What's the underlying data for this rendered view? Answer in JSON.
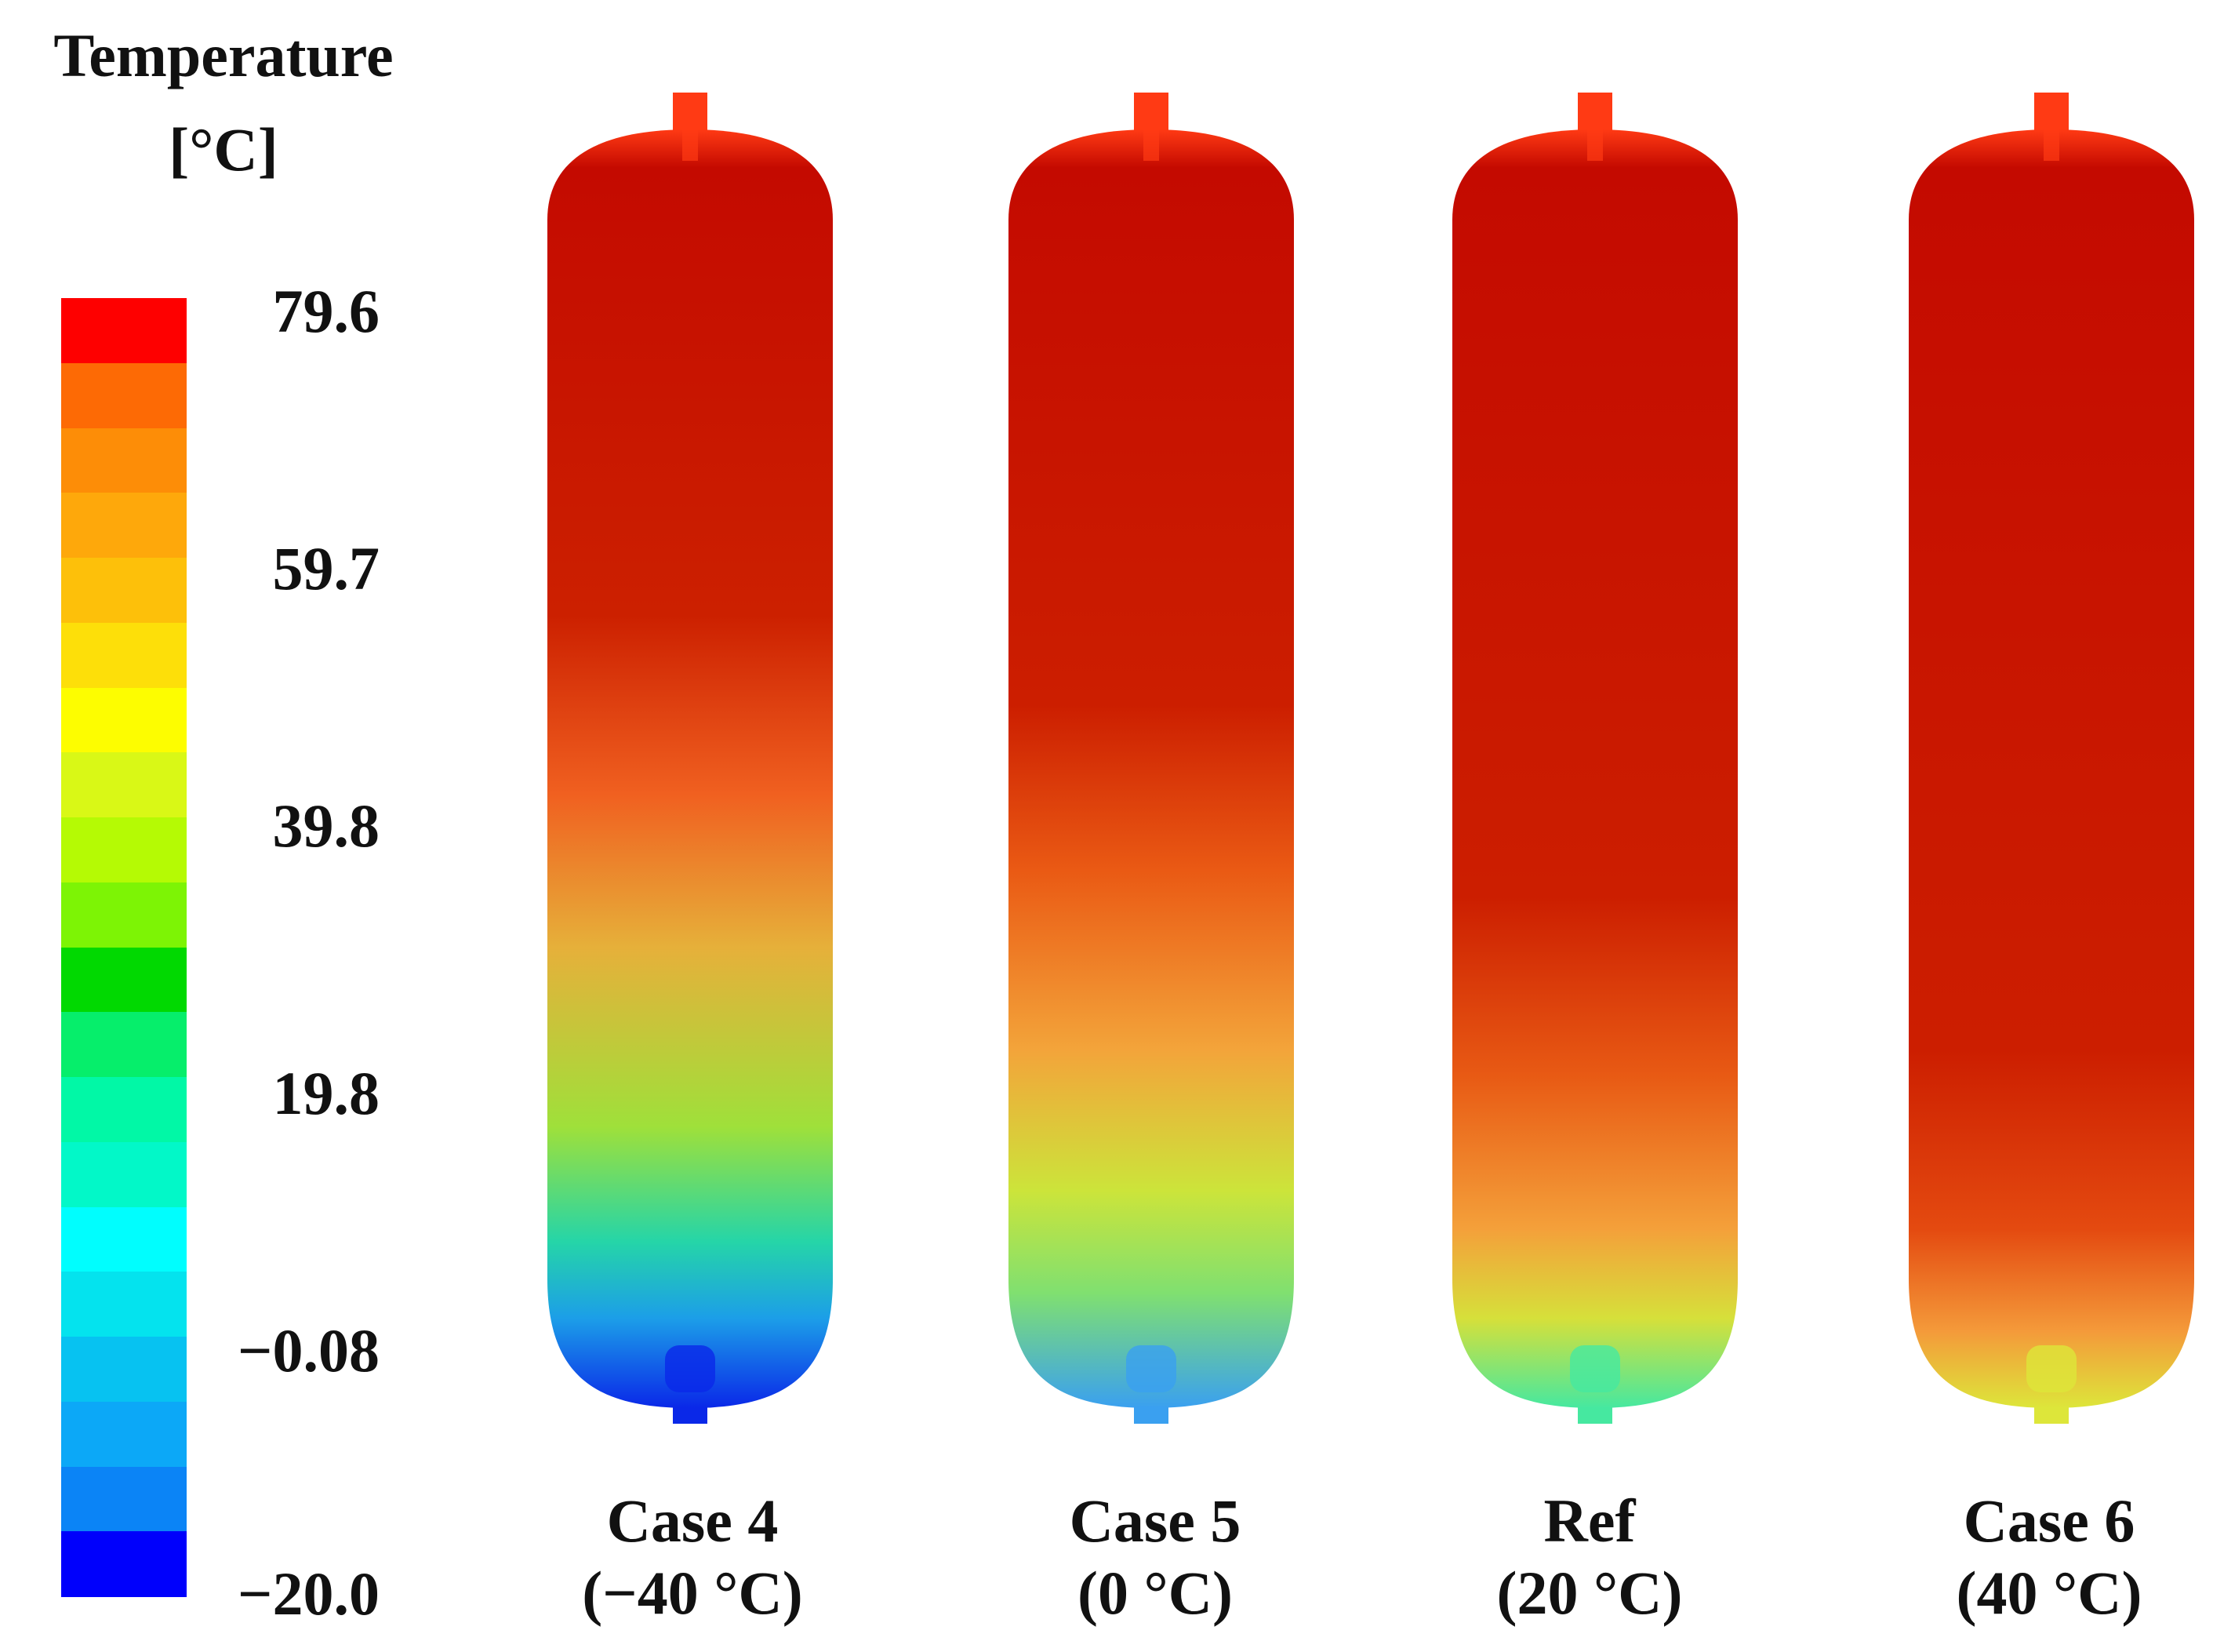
{
  "legend": {
    "title_line1": "Temperature",
    "title_line2": "[°C]",
    "min": -20.0,
    "max": 79.6,
    "ticks": [
      "79.6",
      "59.7",
      "39.8",
      "19.8",
      "−0.08",
      "−20.0"
    ],
    "tick_values": [
      79.6,
      59.7,
      39.8,
      19.8,
      -0.08,
      -20.0
    ],
    "bands_top_to_bottom": [
      "#fe0000",
      "#fd6a05",
      "#fd8d07",
      "#fea80b",
      "#fdc00a",
      "#fddf09",
      "#fdfd00",
      "#d9f816",
      "#b5fa04",
      "#7df405",
      "#01d901",
      "#06ee6b",
      "#01f8a6",
      "#02f8c8",
      "#00fefe",
      "#04e3ee",
      "#07c2f1",
      "#0ca8f7",
      "#0b84f6",
      "#0000fc"
    ]
  },
  "tanks": [
    {
      "line1": "Case 4",
      "line2": "(−40 °C)",
      "stops": [
        [
          0,
          "#ff3a14"
        ],
        [
          0.03,
          "#c40a00"
        ],
        [
          0.38,
          "#cc2000"
        ],
        [
          0.52,
          "#f06020"
        ],
        [
          0.64,
          "#e6b03a"
        ],
        [
          0.78,
          "#9fe03a"
        ],
        [
          0.87,
          "#25d5a8"
        ],
        [
          0.93,
          "#1c9ee8"
        ],
        [
          1,
          "#0a28e8"
        ]
      ]
    },
    {
      "line1": "Case 5",
      "line2": "(0 °C)",
      "stops": [
        [
          0,
          "#ff3a14"
        ],
        [
          0.03,
          "#c40a00"
        ],
        [
          0.45,
          "#cc1e00"
        ],
        [
          0.58,
          "#ea5a14"
        ],
        [
          0.72,
          "#f3a43a"
        ],
        [
          0.83,
          "#cce43a"
        ],
        [
          0.91,
          "#80e070"
        ],
        [
          1,
          "#3aa0f0"
        ]
      ]
    },
    {
      "line1": "Ref",
      "line2": "(20 °C)",
      "stops": [
        [
          0,
          "#ff3a14"
        ],
        [
          0.03,
          "#c40a00"
        ],
        [
          0.6,
          "#cc1e00"
        ],
        [
          0.74,
          "#e85a14"
        ],
        [
          0.86,
          "#f4a03a"
        ],
        [
          0.93,
          "#d6e03a"
        ],
        [
          1,
          "#46e8a0"
        ]
      ]
    },
    {
      "line1": "Case 6",
      "line2": "(40 °C)",
      "stops": [
        [
          0,
          "#ff3a14"
        ],
        [
          0.03,
          "#c40a00"
        ],
        [
          0.72,
          "#cc1e00"
        ],
        [
          0.86,
          "#e44a10"
        ],
        [
          0.94,
          "#f49a3a"
        ],
        [
          1,
          "#dde63a"
        ]
      ]
    }
  ]
}
